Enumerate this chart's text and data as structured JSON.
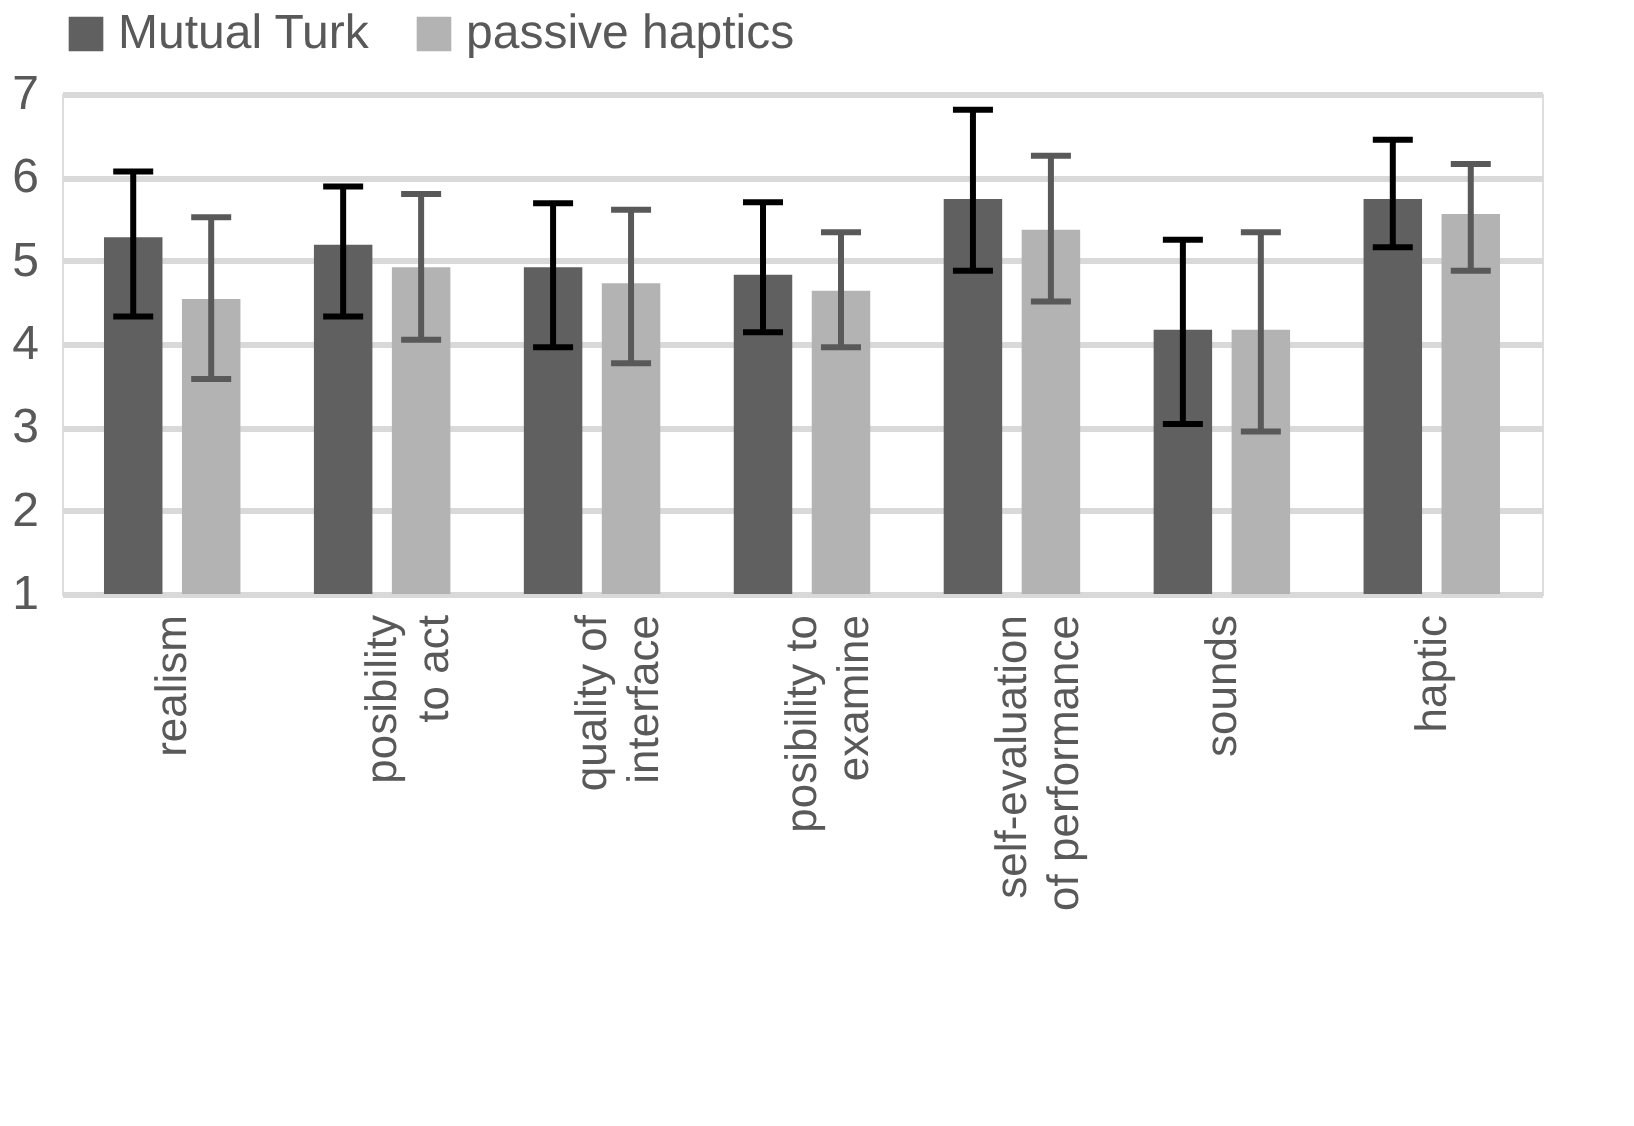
{
  "chart_data": {
    "type": "bar",
    "categories": [
      "realism",
      "posibility\nto act",
      "quality of\ninterface",
      "posibility to\nexamine",
      "self-evaluation\nof performance",
      "sounds",
      "haptic"
    ],
    "series": [
      {
        "name": "Mutual Turk",
        "color": "#606060",
        "values": [
          5.28,
          5.19,
          4.92,
          4.83,
          5.74,
          4.17,
          5.74
        ],
        "errors": [
          [
            4.33,
            6.07
          ],
          [
            4.33,
            5.89
          ],
          [
            3.96,
            5.69
          ],
          [
            4.14,
            5.7
          ],
          [
            4.88,
            6.81
          ],
          [
            3.04,
            5.25
          ],
          [
            5.16,
            6.45
          ]
        ]
      },
      {
        "name": "passive haptics",
        "color": "#b3b3b3",
        "values": [
          4.54,
          4.92,
          4.73,
          4.64,
          5.37,
          4.17,
          5.56
        ],
        "errors": [
          [
            3.58,
            5.52
          ],
          [
            4.05,
            5.8
          ],
          [
            3.77,
            5.61
          ],
          [
            3.96,
            5.34
          ],
          [
            4.51,
            6.26
          ],
          [
            2.95,
            5.34
          ],
          [
            4.88,
            6.16
          ]
        ]
      }
    ],
    "ylim": [
      1,
      7
    ],
    "yticks": [
      1,
      2,
      3,
      4,
      5,
      6,
      7
    ],
    "grid": "y",
    "legend": "top"
  }
}
